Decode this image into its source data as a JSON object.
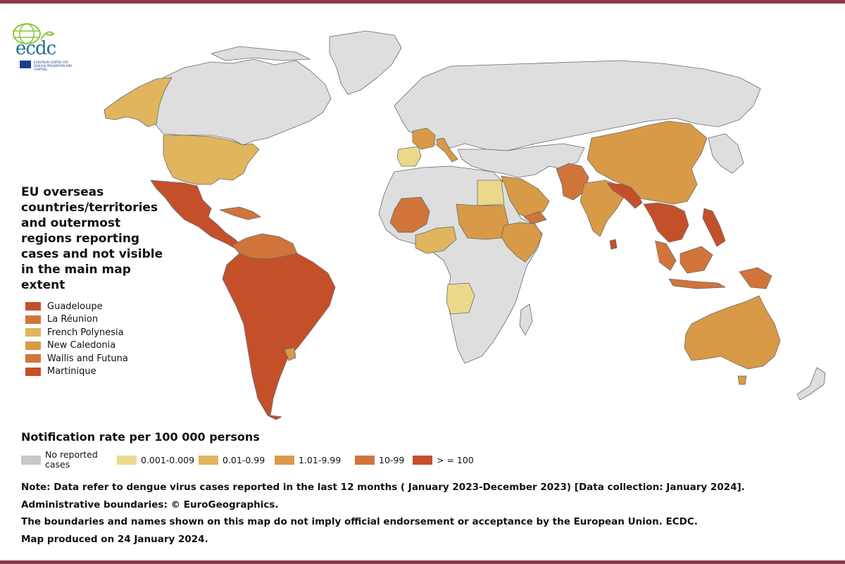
{
  "colors": {
    "frame_rule": "#8b3a4a",
    "ocean": "#ffffff",
    "no_data": "#dedede",
    "border": "#6b6b6b"
  },
  "logo": {
    "icon": "ecdc-globe-logo",
    "text": "ecdc",
    "subtext": "EUROPEAN CENTRE FOR DISEASE PREVENTION AND CONTROL"
  },
  "overseas_panel": {
    "title": "EU overseas countries/territories and outermost regions reporting cases and not visible in the main map extent",
    "items": [
      {
        "label": "Guadeloupe",
        "color": "#c4502a"
      },
      {
        "label": "La Réunion",
        "color": "#d0743c"
      },
      {
        "label": "French Polynesia",
        "color": "#e0b55e"
      },
      {
        "label": "New Caledonia",
        "color": "#d89a46"
      },
      {
        "label": "Wallis and Futuna",
        "color": "#d0743c"
      },
      {
        "label": "Martinique",
        "color": "#c4502a"
      }
    ]
  },
  "legend": {
    "title": "Notification rate per 100 000 persons",
    "classes": [
      {
        "label": "No reported cases",
        "color": "#c8c8c8"
      },
      {
        "label": "0.001-0.009",
        "color": "#ead98a"
      },
      {
        "label": "0.01-0.99",
        "color": "#e0b55e"
      },
      {
        "label": "1.01-9.99",
        "color": "#d89a46"
      },
      {
        "label": "10-99",
        "color": "#d0743c"
      },
      {
        "label": "> = 100",
        "color": "#c4502a"
      }
    ]
  },
  "map": {
    "regions": [
      {
        "name": "Canada / Greenland / Russia / Europe north",
        "class": "No reported cases"
      },
      {
        "name": "Alaska",
        "class": "0.01-0.99"
      },
      {
        "name": "United States",
        "class": "0.01-0.99"
      },
      {
        "name": "Mexico & Central America",
        "class": "> = 100"
      },
      {
        "name": "Caribbean",
        "class": "10-99"
      },
      {
        "name": "South America",
        "class": "> = 100"
      },
      {
        "name": "Colombia / Venezuela / Guianas",
        "class": "10-99"
      },
      {
        "name": "Uruguay",
        "class": "1.01-9.99"
      },
      {
        "name": "France",
        "class": "1.01-9.99"
      },
      {
        "name": "Spain / Portugal",
        "class": "0.001-0.009"
      },
      {
        "name": "Italy",
        "class": "1.01-9.99"
      },
      {
        "name": "Egypt",
        "class": "0.001-0.009"
      },
      {
        "name": "Mali / Burkina Faso",
        "class": "10-99"
      },
      {
        "name": "Nigeria / Ghana",
        "class": "0.01-0.99"
      },
      {
        "name": "Chad / Sudan",
        "class": "1.01-9.99"
      },
      {
        "name": "Ethiopia / Somalia",
        "class": "1.01-9.99"
      },
      {
        "name": "Angola",
        "class": "0.001-0.009"
      },
      {
        "name": "Arabian Peninsula",
        "class": "1.01-9.99"
      },
      {
        "name": "Yemen",
        "class": "10-99"
      },
      {
        "name": "Afghanistan / Pakistan",
        "class": "10-99"
      },
      {
        "name": "India",
        "class": "1.01-9.99"
      },
      {
        "name": "Nepal / Bangladesh",
        "class": "> = 100"
      },
      {
        "name": "China",
        "class": "1.01-9.99"
      },
      {
        "name": "Mainland Southeast Asia",
        "class": "> = 100"
      },
      {
        "name": "Philippines",
        "class": "> = 100"
      },
      {
        "name": "Malaysia / Indonesia",
        "class": "10-99"
      },
      {
        "name": "Sri Lanka",
        "class": "> = 100"
      },
      {
        "name": "Australia",
        "class": "1.01-9.99"
      },
      {
        "name": "Africa other / Asia other",
        "class": "No reported cases"
      }
    ]
  },
  "notes": [
    "Note: Data refer to dengue virus cases reported in the last 12 months ( January 2023-December 2023) [Data collection: January 2024].",
    "Administrative boundaries: © EuroGeographics.",
    "The boundaries and names shown on this map do not imply official endorsement or acceptance by the European Union. ECDC.",
    "Map produced on 24 January 2024."
  ]
}
